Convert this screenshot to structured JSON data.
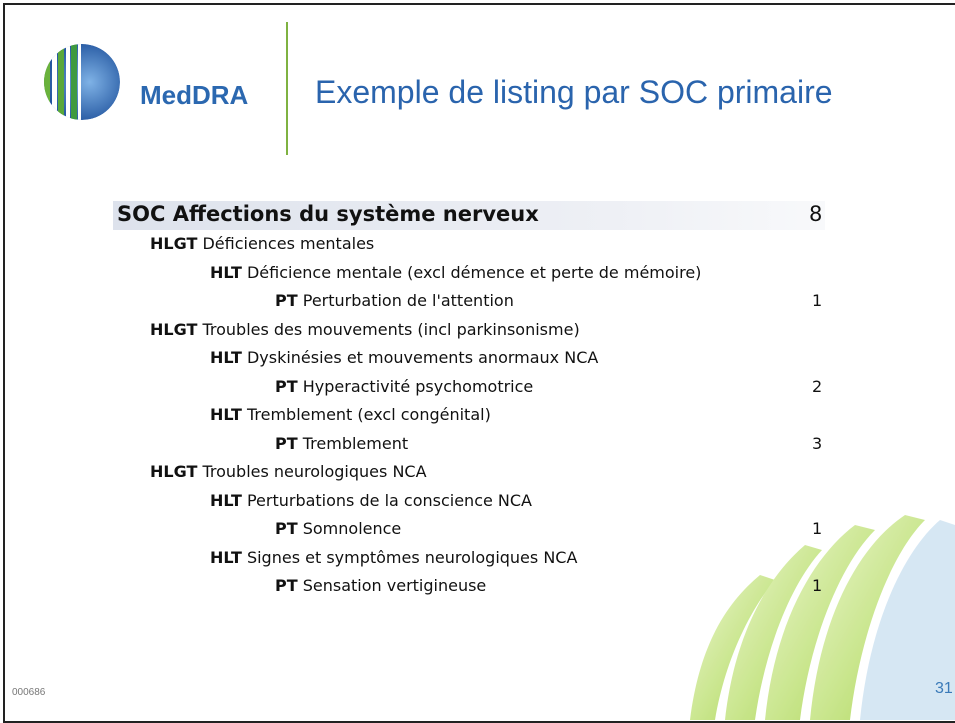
{
  "header": {
    "logo_text": "MedDRA",
    "title": "Exemple de listing par SOC primaire"
  },
  "listing": {
    "soc": {
      "level": "SOC",
      "name": "Affections du système nerveux",
      "count": 8
    },
    "rows": [
      {
        "level": "HLGT",
        "name": "Déficiences mentales"
      },
      {
        "level": "HLT",
        "name": "Déficience mentale (excl démence et perte de mémoire)"
      },
      {
        "level": "PT",
        "name": "Perturbation de l'attention",
        "count": 1
      },
      {
        "level": "HLGT",
        "name": "Troubles des mouvements (incl parkinsonisme)"
      },
      {
        "level": "HLT",
        "name": "Dyskinésies et mouvements anormaux NCA"
      },
      {
        "level": "PT",
        "name": "Hyperactivité psychomotrice",
        "count": 2
      },
      {
        "level": "HLT",
        "name": "Tremblement (excl congénital)"
      },
      {
        "level": "PT",
        "name": "Tremblement",
        "count": 3
      },
      {
        "level": "HLGT",
        "name": "Troubles neurologiques NCA"
      },
      {
        "level": "HLT",
        "name": "Perturbations de la conscience NCA"
      },
      {
        "level": "PT",
        "name": "Somnolence",
        "count": 1
      },
      {
        "level": "HLT",
        "name": "Signes et symptômes neurologiques NCA"
      },
      {
        "level": "PT",
        "name": "Sensation vertigineuse",
        "count": 1
      }
    ]
  },
  "footer": {
    "code": "000686",
    "page": 31
  }
}
